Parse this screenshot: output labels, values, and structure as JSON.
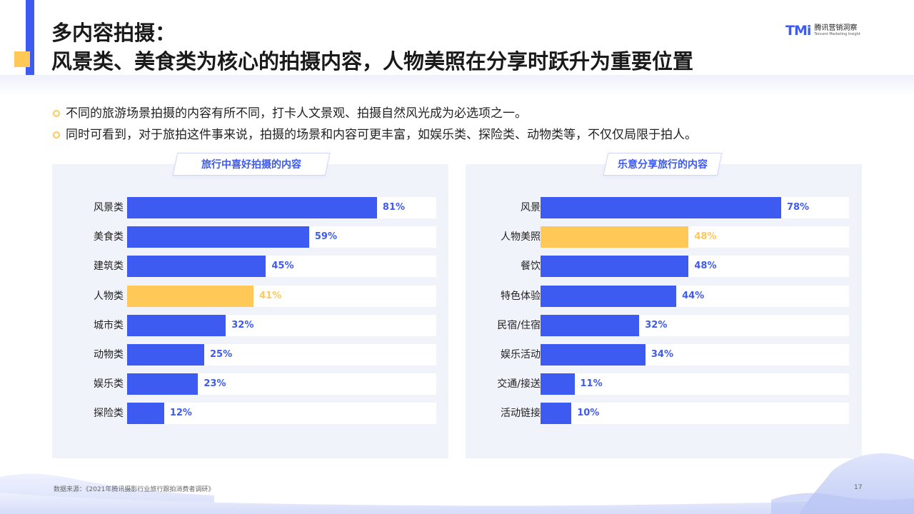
{
  "header": {
    "title_line1": "多内容拍摄：",
    "title_line2": "风景类、美食类为核心的拍摄内容，人物美照在分享时跃升为重要位置"
  },
  "logo": {
    "mark": "TMi",
    "cn": "腾讯营销洞察",
    "en": "Tencent Marketing Insight"
  },
  "bullets": [
    "不同的旅游场景拍摄的内容有所不同，打卡人文景观、拍摄自然风光成为必选项之一。",
    "同时可看到，对于旅拍这件事来说，拍摄的场景和内容可更丰富，如娱乐类、探险类、动物类等，不仅仅局限于拍人。"
  ],
  "colors": {
    "primary": "#3d5af1",
    "highlight": "#ffc857",
    "panel_bg": "#f1f3fb"
  },
  "chart_data": [
    {
      "type": "bar",
      "orientation": "horizontal",
      "title": "旅行中喜好拍摄的内容",
      "categories": [
        "风景类",
        "美食类",
        "建筑类",
        "人物类",
        "城市类",
        "动物类",
        "娱乐类",
        "探险类"
      ],
      "values": [
        81,
        59,
        45,
        41,
        32,
        25,
        23,
        12
      ],
      "value_labels": [
        "81%",
        "59%",
        "45%",
        "41%",
        "32%",
        "25%",
        "23%",
        "12%"
      ],
      "highlight_index": 3,
      "xlim": [
        0,
        100
      ]
    },
    {
      "type": "bar",
      "orientation": "horizontal",
      "title": "乐意分享旅行的内容",
      "categories": [
        "风景",
        "人物美照",
        "餐饮",
        "特色体验",
        "民宿/住宿",
        "娱乐活动",
        "交通/接送",
        "活动链接"
      ],
      "values": [
        78,
        48,
        48,
        44,
        32,
        34,
        11,
        10
      ],
      "value_labels": [
        "78%",
        "48%",
        "48%",
        "44%",
        "32%",
        "34%",
        "11%",
        "10%"
      ],
      "highlight_index": 1,
      "xlim": [
        0,
        100
      ]
    }
  ],
  "footer": {
    "source": "数据来源：《2021年腾讯摄影行业旅行跟拍消费者调研》",
    "page": "17"
  }
}
